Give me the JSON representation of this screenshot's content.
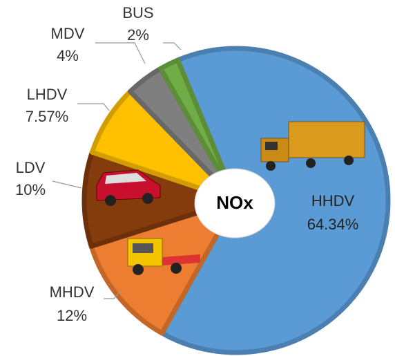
{
  "chart_data": {
    "type": "pie",
    "center_label": "NOx",
    "categories": [
      "HHDV",
      "MHDV",
      "LDV",
      "LHDV",
      "MDV",
      "BUS"
    ],
    "values": [
      64.34,
      12,
      10,
      7.57,
      4,
      2
    ],
    "value_labels": [
      "64.34%",
      "12%",
      "10%",
      "7.57%",
      "4%",
      "2%"
    ],
    "colors": [
      "#5b9bd5",
      "#ed7d31",
      "#843c0c",
      "#ffc000",
      "#7f7f7f",
      "#70ad47"
    ]
  }
}
